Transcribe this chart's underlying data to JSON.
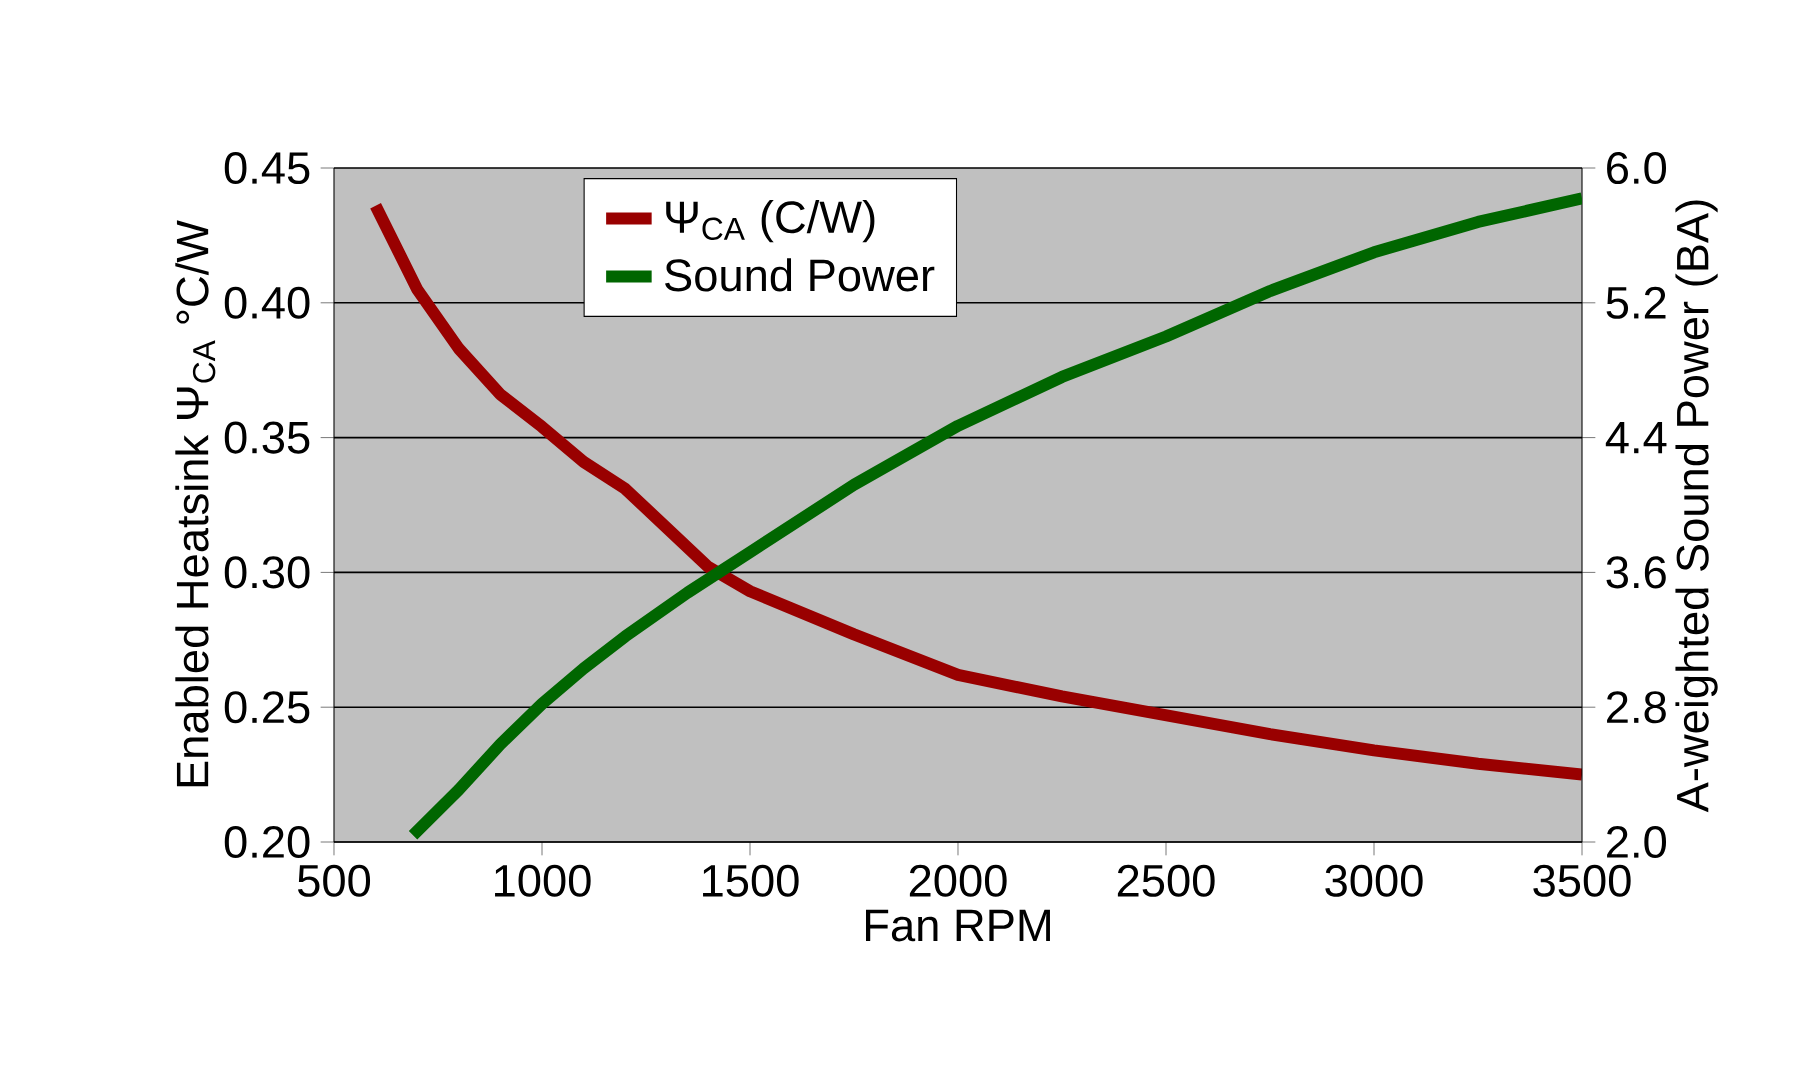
{
  "chart_data": {
    "type": "line",
    "xlabel": "Fan RPM",
    "ylabel": "Enabled Heatsink Ψ$_{CA}$ °C/W",
    "y2label": "A-weighted Sound Power (BA)",
    "xlim": [
      500,
      3500
    ],
    "xticks": [
      500,
      1000,
      1500,
      2000,
      2500,
      3000,
      3500
    ],
    "ylim": [
      0.2,
      0.45
    ],
    "yticks": [
      {
        "value": 0.2,
        "label": "0.20"
      },
      {
        "value": 0.25,
        "label": "0.25"
      },
      {
        "value": 0.3,
        "label": "0.30"
      },
      {
        "value": 0.35,
        "label": "0.35"
      },
      {
        "value": 0.4,
        "label": "0.40"
      },
      {
        "value": 0.45,
        "label": "0.45"
      }
    ],
    "y2lim": [
      2.0,
      6.0
    ],
    "y2ticks": [
      {
        "value": 2.0,
        "label": "2.0"
      },
      {
        "value": 2.8,
        "label": "2.8"
      },
      {
        "value": 3.6,
        "label": "3.6"
      },
      {
        "value": 4.4,
        "label": "4.4"
      },
      {
        "value": 5.2,
        "label": "5.2"
      },
      {
        "value": 6.0,
        "label": "6.0"
      }
    ],
    "grid": "y",
    "legend": "top left",
    "marker": "none",
    "line_style": "solid",
    "series": [
      {
        "name": "Ψ$_{CA}$ (C/W)",
        "color": "#990000",
        "x": [
          600,
          700,
          800,
          900,
          1000,
          1100,
          1200,
          1400,
          1500,
          1750,
          2000,
          2250,
          2500,
          2750,
          3000,
          3250,
          3500
        ],
        "values": [
          0.436,
          0.405,
          0.383,
          0.366,
          0.354,
          0.341,
          0.331,
          0.302,
          0.293,
          0.277,
          0.262,
          0.254,
          0.247,
          0.24,
          0.234,
          0.229,
          0.225
        ]
      },
      {
        "name": "Sound Power",
        "color": "#006600",
        "axis": "y2",
        "x": [
          690,
          800,
          900,
          1000,
          1100,
          1200,
          1350,
          1500,
          1750,
          2000,
          2250,
          2500,
          2750,
          3000,
          3250,
          3500
        ],
        "values": [
          2.04,
          2.31,
          2.58,
          2.82,
          3.03,
          3.22,
          3.48,
          3.72,
          4.12,
          4.47,
          4.76,
          5.0,
          5.27,
          5.5,
          5.68,
          5.82
        ]
      }
    ]
  }
}
